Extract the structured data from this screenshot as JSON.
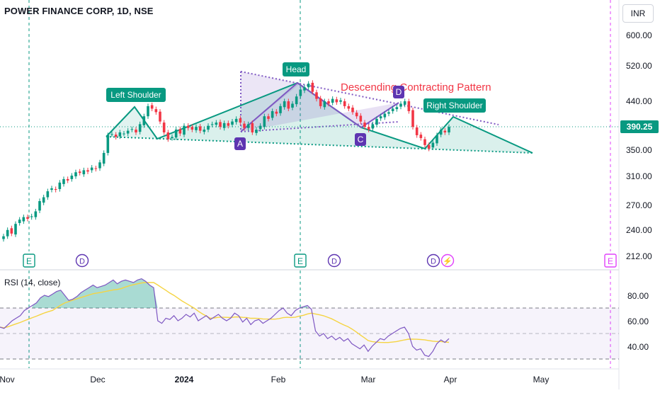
{
  "header": {
    "title": "POWER FINANCE CORP, 1D, NSE",
    "currency": "INR",
    "last_price": "390.25"
  },
  "rsi": {
    "title": "RSI (14, close)",
    "ticks": [
      "80.00",
      "60.00",
      "40.00"
    ]
  },
  "colors": {
    "up": "#089981",
    "down": "#f23645",
    "pattern": "#089981",
    "abcd": "#7e57c2",
    "rsi_line": "#7e57c2",
    "rsi_ma": "#f5d442"
  },
  "chart_data": {
    "type": "candlestick",
    "title": "",
    "y_ticks": [
      "600.00",
      "520.00",
      "440.00",
      "390.25",
      "350.00",
      "310.00",
      "270.00",
      "240.00",
      "212.00"
    ],
    "ylim": [
      212,
      600
    ],
    "scale": "log",
    "x_ticks": [
      "Nov",
      "Dec",
      "2024",
      "Feb",
      "Mar",
      "Apr",
      "May"
    ],
    "annotations": {
      "pattern_title": "Descending Contracting  Pattern",
      "left_shoulder": "Left Shoulder",
      "head": "Head",
      "right_shoulder": "Right Shoulder",
      "points": [
        "A",
        "C",
        "D"
      ]
    },
    "events": [
      {
        "label": "E",
        "type": "earnings"
      },
      {
        "label": "D",
        "type": "dividend"
      },
      {
        "label": "E",
        "type": "earnings"
      },
      {
        "label": "D",
        "type": "dividend"
      },
      {
        "label": "D",
        "type": "dividend"
      },
      {
        "label": "⚡",
        "type": "split"
      },
      {
        "label": "E",
        "type": "earnings"
      }
    ],
    "closes": [
      233,
      240,
      236,
      247,
      252,
      255,
      253,
      256,
      262,
      275,
      280,
      288,
      292,
      290,
      300,
      305,
      303,
      310,
      315,
      314,
      318,
      316,
      322,
      320,
      330,
      345,
      375,
      377,
      372,
      380,
      378,
      383,
      386,
      380,
      395,
      410,
      430,
      425,
      418,
      400,
      380,
      368,
      372,
      385,
      378,
      392,
      388,
      385,
      390,
      383,
      385,
      392,
      395,
      398,
      390,
      397,
      392,
      400,
      405,
      398,
      388,
      395,
      380,
      385,
      392,
      410,
      405,
      420,
      415,
      430,
      440,
      425,
      435,
      450,
      465,
      470,
      478,
      460,
      445,
      430,
      440,
      435,
      445,
      438,
      442,
      430,
      425,
      418,
      410,
      400,
      390,
      385,
      395,
      405,
      410,
      415,
      418,
      425,
      428,
      435,
      440,
      420,
      390,
      375,
      370,
      358,
      352,
      362,
      375,
      385,
      380,
      390
    ],
    "rsi": [
      55,
      54,
      57,
      60,
      62,
      64,
      68,
      70,
      72,
      74,
      78,
      80,
      79,
      81,
      83,
      84,
      80,
      76,
      77,
      79,
      82,
      84,
      86,
      88,
      86,
      87,
      88,
      90,
      92,
      89,
      91,
      92,
      91,
      90,
      92,
      93,
      91,
      88,
      86,
      60,
      58,
      62,
      61,
      64,
      60,
      62,
      65,
      63,
      66,
      60,
      62,
      64,
      61,
      63,
      65,
      62,
      60,
      62,
      66,
      64,
      59,
      62,
      57,
      60,
      61,
      58,
      60,
      62,
      65,
      68,
      70,
      66,
      64,
      68,
      70,
      71,
      72,
      69,
      52,
      48,
      50,
      46,
      48,
      45,
      47,
      44,
      46,
      42,
      40,
      38,
      41,
      36,
      40,
      43,
      46,
      45,
      48,
      50,
      52,
      54,
      55,
      50,
      40,
      37,
      38,
      33,
      32,
      36,
      42,
      45,
      43,
      46
    ]
  }
}
